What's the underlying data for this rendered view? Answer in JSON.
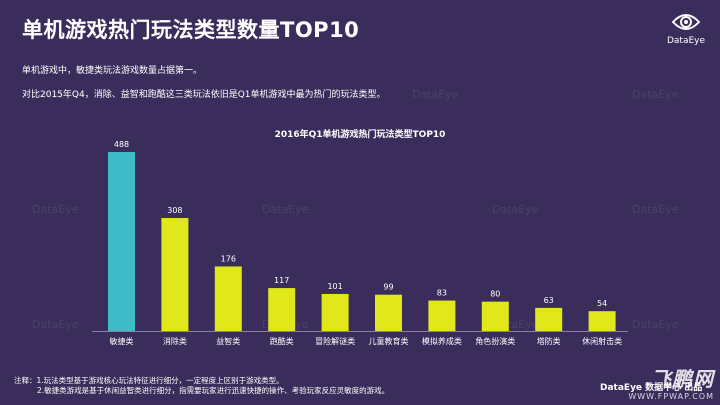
{
  "header": {
    "title": "单机游戏热门玩法类型数量TOP10",
    "logo_text": "DataEye"
  },
  "description": {
    "line1": "单机游戏中，敏捷类玩法游戏数量占据第一。",
    "line2": "对比2015年Q4，消除、益智和跑酷这三类玩法依旧是Q1单机游戏中最为热门的玩法类型。"
  },
  "watermark_text": "DataEye",
  "colors": {
    "background": "#3a2d5c",
    "bar_highlight": "#3dbcc8",
    "bar_default": "#e0e81c",
    "accent_footer": "#ffffff"
  },
  "chart_data": {
    "type": "bar",
    "title": "2016年Q1单机游戏热门玩法类型TOP10",
    "categories": [
      "敏捷类",
      "消除类",
      "益智类",
      "跑酷类",
      "冒险解谜类",
      "儿童教育类",
      "模拟养成类",
      "角色扮演类",
      "塔防类",
      "休闲射击类"
    ],
    "values": [
      488,
      308,
      176,
      117,
      101,
      99,
      83,
      80,
      63,
      54
    ],
    "highlight_index": 0,
    "xlabel": "",
    "ylabel": "",
    "ylim": [
      0,
      500
    ],
    "grid": false,
    "legend": "none"
  },
  "footnotes": {
    "line1": "注释：1.玩法类型基于游戏核心玩法特征进行细分，一定程度上区别于游戏类型。",
    "line2": "2.敏捷类游戏是基于休闲益智类进行细分，指需要玩家进行迅速快捷的操作、考验玩家反应灵敏度的游戏。"
  },
  "footer": {
    "brand": "DataEye 数据中心 出品",
    "site_mark": "飞鹏网",
    "site_url": "WWW.FPWAP.COM"
  }
}
